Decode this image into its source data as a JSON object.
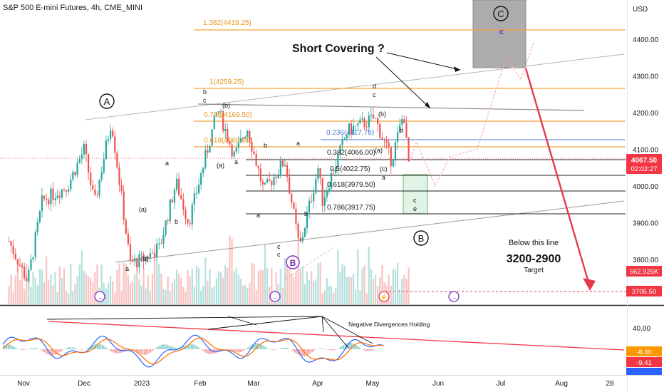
{
  "header": {
    "title": "S&P 500 E-mini Futures, 4h, CME_MINI"
  },
  "currency": "USD",
  "colors": {
    "bull": "#26a69a",
    "bear": "#ef5350",
    "fib": "#f7a23a",
    "price_tag": "#f23645",
    "purple": "#7b2cbf",
    "arrow": "#e53950",
    "macd_line": "#2962ff",
    "signal_line": "#ff6d00",
    "target_box": "#8c8c8c",
    "green_box": "#2e9e3f",
    "div_line": "#f23645"
  },
  "y_axis_labels": [
    "4400.00",
    "4300.00",
    "4200.00",
    "4100.00",
    "4000.00",
    "3900.00",
    "3800.00"
  ],
  "x_axis_labels": [
    "Nov",
    "Dec",
    "2023",
    "Feb",
    "Mar",
    "Apr",
    "May",
    "Jun",
    "Jul",
    "Aug",
    "28"
  ],
  "price_tags": {
    "last_price": "4067.50",
    "countdown": "02:02:27",
    "volume": "562.926K",
    "target_line": "3705.50"
  },
  "indicator": {
    "y_label": "40.00",
    "tag_a": "-8.30",
    "tag_b": "-9.41",
    "annotation": "Negative Divergences Holding"
  },
  "fib_levels": {
    "f1382": "1.382(4419.25)",
    "f1": "1(4259.25)",
    "f786": "0.786(4169.50)",
    "f618": "0.618(4060.00)",
    "f236": "0.236(4117.75)",
    "r382": "0.382(4066.00)",
    "r5": "0.5(4022.75)",
    "r618": "0.618(3979.50)",
    "r786": "0.786(3917.75)"
  },
  "annotations": {
    "short_covering": "Short Covering ?",
    "below_line": "Below this line",
    "target_range": "3200-2900",
    "target": "Target"
  },
  "wave_labels": {
    "circle_A": "A",
    "circle_B": "B",
    "circle_C": "C",
    "purple_B": "B",
    "purple_c": "c",
    "a1": "a",
    "b1": "(b)",
    "a2": "(a)",
    "b2": "b",
    "a3": "a",
    "bc_b": "b",
    "bc_c": "c",
    "feb_b": "(b)",
    "feb_a": "(a)",
    "feb_a2": "a",
    "mar_b": "b",
    "mar_a": "a",
    "mar_b2": "b",
    "mar_c1": "c",
    "mar_c2": "c",
    "apr_a": "a",
    "apr_b": "(b)",
    "apr_d": "d",
    "apr_c": "c",
    "apr_pa": "(a)",
    "apr_pc": "(c)",
    "apr_a2": "a",
    "proj_b": "b",
    "box_c": "c",
    "box_e": "e"
  },
  "chart_data": {
    "type": "candlestick",
    "title": "S&P 500 E-mini Futures, 4h, CME_MINI",
    "ylabel": "USD",
    "ylim": [
      3710,
      4480
    ],
    "x_ticks": [
      "Nov",
      "Dec",
      "2023",
      "Feb",
      "Mar",
      "Apr",
      "May",
      "Jun",
      "Jul",
      "Aug",
      "28"
    ],
    "series": [
      {
        "name": "price path (approx.)",
        "points": [
          [
            "2022-10-25",
            3850
          ],
          [
            "2022-11-03",
            3740
          ],
          [
            "2022-11-10",
            3960
          ],
          [
            "2022-11-22",
            4000
          ],
          [
            "2022-11-30",
            4100
          ],
          [
            "2022-12-05",
            3950
          ],
          [
            "2022-12-13",
            4180
          ],
          [
            "2022-12-22",
            3790
          ],
          [
            "2022-12-28",
            3800
          ],
          [
            "2023-01-05",
            3830
          ],
          [
            "2023-01-13",
            4010
          ],
          [
            "2023-01-19",
            3900
          ],
          [
            "2023-02-02",
            4210
          ],
          [
            "2023-02-10",
            4080
          ],
          [
            "2023-02-16",
            4160
          ],
          [
            "2023-02-24",
            3985
          ],
          [
            "2023-03-06",
            4070
          ],
          [
            "2023-03-13",
            3830
          ],
          [
            "2023-03-22",
            4050
          ],
          [
            "2023-03-24",
            3960
          ],
          [
            "2023-04-05",
            4150
          ],
          [
            "2023-04-18",
            4185
          ],
          [
            "2023-04-26",
            4070
          ],
          [
            "2023-05-02",
            4200
          ],
          [
            "2023-05-04",
            4062
          ],
          [
            "2023-05-05",
            4067.5
          ]
        ]
      },
      {
        "name": "projected path",
        "points": [
          [
            "2023-05-08",
            4120
          ],
          [
            "2023-05-17",
            4000
          ],
          [
            "2023-05-24",
            4080
          ],
          [
            "2023-06-06",
            4100
          ],
          [
            "2023-06-20",
            4350
          ],
          [
            "2023-06-27",
            4290
          ],
          [
            "2023-07-03",
            4390
          ],
          [
            "2023-08-08",
            3705.5
          ]
        ]
      }
    ],
    "horizontal_levels": [
      4419.25,
      4259.25,
      4169.5,
      4117.75,
      4066,
      4060,
      4022.75,
      3979.5,
      3917.75,
      3705.5
    ],
    "last_price": 4067.5,
    "target_line": 3705.5,
    "indicator": {
      "type": "macd",
      "values_shown": [
        -8.3,
        -9.41
      ],
      "ytick": 40
    }
  }
}
